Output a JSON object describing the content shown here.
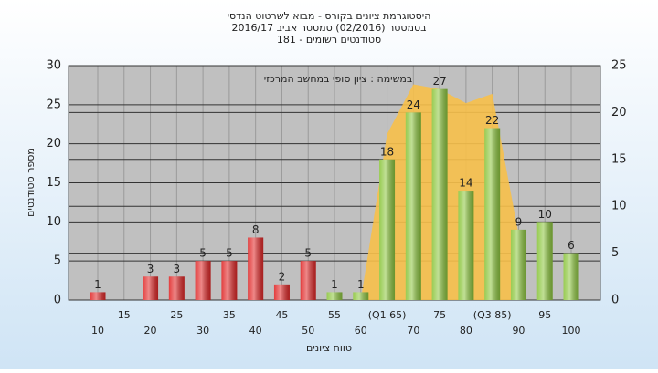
{
  "chart_data": {
    "type": "bar",
    "title": "היסטוגרמת ציונים בקורס - מבוא לשרטוט הנדסי",
    "subtitle": "בסמסטר  (02/2016)  סמסטר אביב 2016/17",
    "subtitle2": "סטודנטים רשומים - 181",
    "annotation": "במשימה : ציון סופי במחשב המרכזי",
    "x_label": "טווח ציונים",
    "y_label": "מספר סטודנטים",
    "categories": [
      "10",
      "15",
      "20",
      "25",
      "30",
      "35",
      "40",
      "45",
      "50",
      "55",
      "60",
      "(Q1 65)",
      "70",
      "75",
      "80",
      "(Q3 85)",
      "90",
      "95",
      "100"
    ],
    "series": [
      {
        "values": [
          1,
          0,
          3,
          3,
          5,
          5,
          8,
          2,
          5,
          1,
          1,
          18,
          24,
          27,
          14,
          22,
          9,
          10,
          6
        ],
        "colors": [
          "#e02828",
          "#e02828",
          "#e02828",
          "#e02828",
          "#e02828",
          "#e02828",
          "#e02828",
          "#e02828",
          "#e02828",
          "#8dc63f",
          "#8dc63f",
          "#8dc63f",
          "#8dc63f",
          "#8dc63f",
          "#8dc63f",
          "#8dc63f",
          "#8dc63f",
          "#8dc63f",
          "#8dc63f"
        ]
      },
      {
        "type": "area",
        "axis": "y2",
        "color": "#f7c04a",
        "values": [
          null,
          null,
          null,
          null,
          null,
          null,
          null,
          null,
          null,
          null,
          0,
          17.7,
          23,
          22.5,
          21,
          22,
          7,
          null,
          null
        ]
      }
    ],
    "ylim": [
      0,
      30
    ],
    "yticks": [
      0,
      5,
      10,
      15,
      20,
      25,
      30
    ],
    "y2lim": [
      0,
      25
    ],
    "y2ticks": [
      0,
      5,
      10,
      15,
      20,
      25
    ],
    "grid": true
  }
}
